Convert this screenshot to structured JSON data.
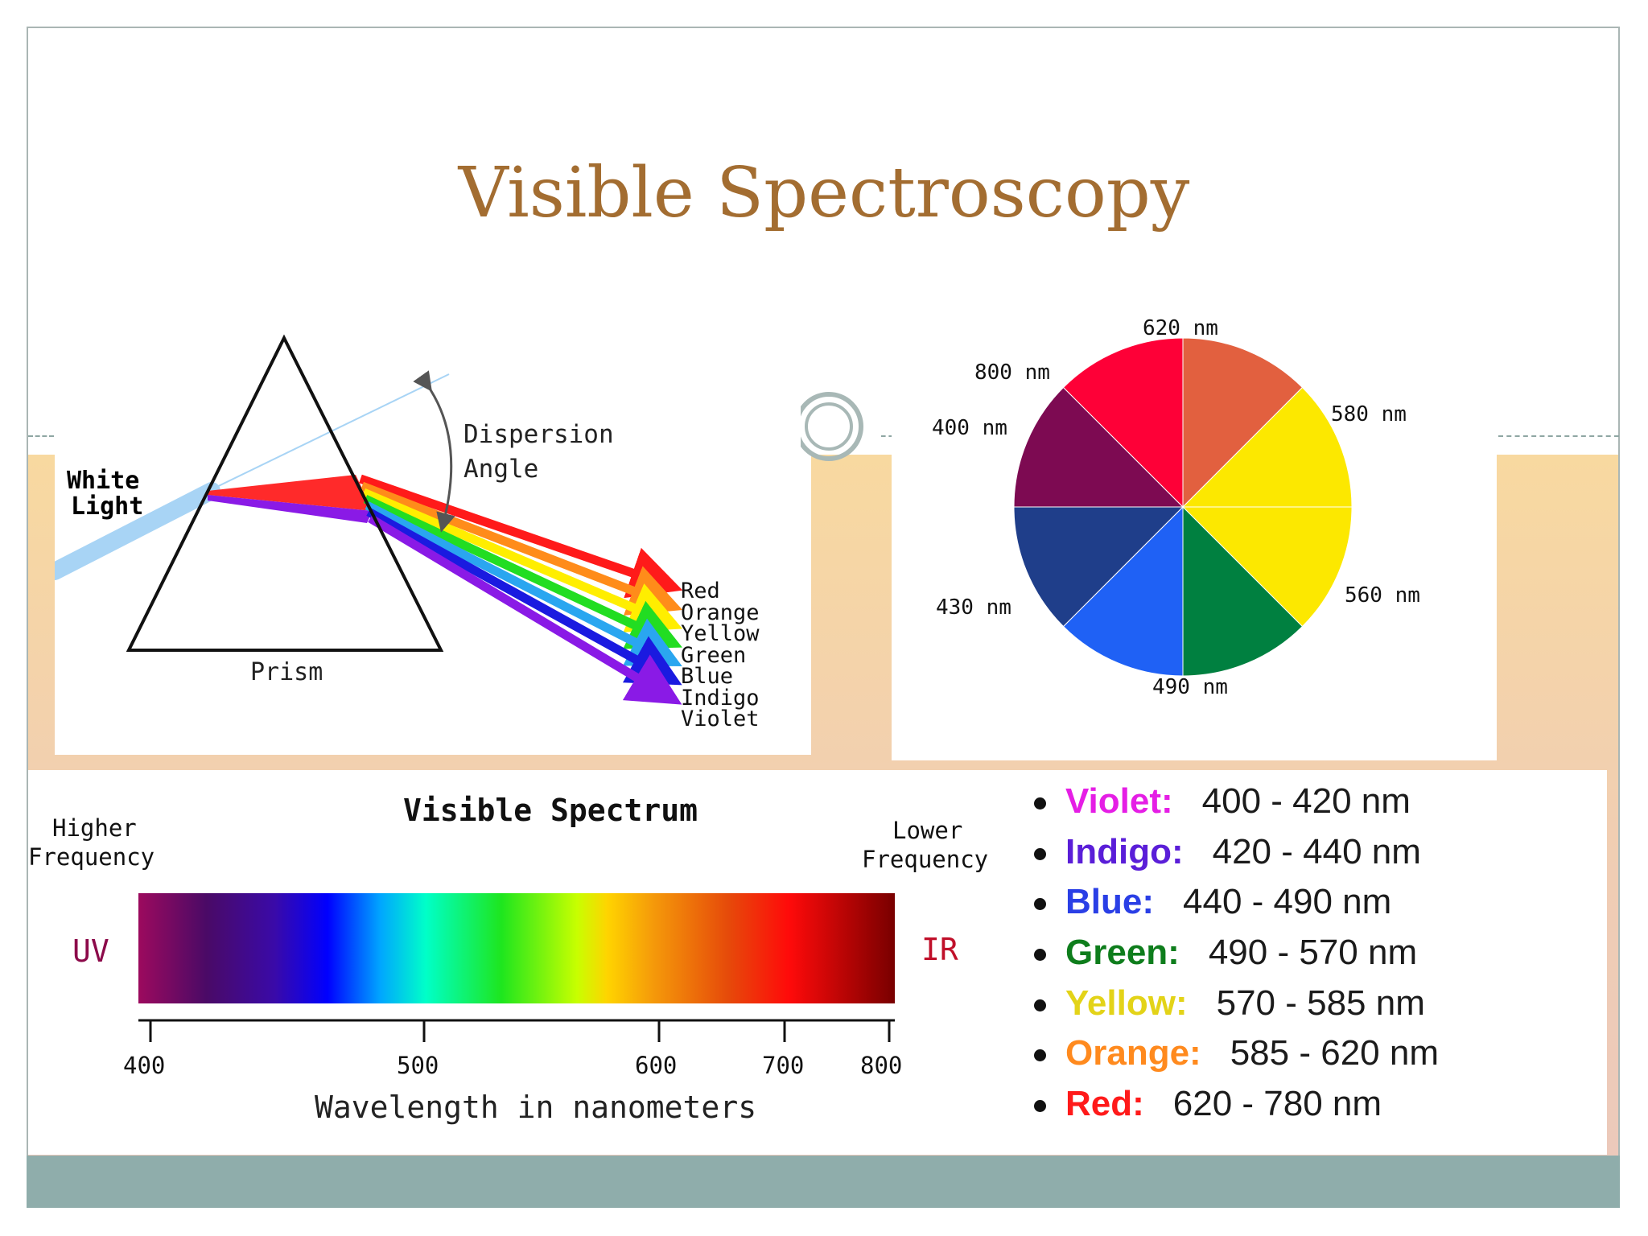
{
  "slide": {
    "title": "Visible  Spectroscopy"
  },
  "prism_diagram": {
    "white_light_line1": "White",
    "white_light_line2": "Light",
    "dispersion_line1": "Dispersion",
    "dispersion_line2": "Angle",
    "prism_label": "Prism",
    "rays": [
      "Red",
      "Orange",
      "Yellow",
      "Green",
      "Blue",
      "Indigo",
      "Violet"
    ]
  },
  "color_wheel": {
    "labels": [
      "620 nm",
      "800 nm",
      "580 nm",
      "400 nm",
      "560 nm",
      "430 nm",
      "490 nm"
    ],
    "colors": [
      "#e2603f",
      "#fce800",
      "#008040",
      "#1f61f5",
      "#1f3e8a",
      "#7d0a52",
      "#fe0037"
    ]
  },
  "visible_spectrum": {
    "title": "Visible Spectrum",
    "higher_line1": "Higher",
    "higher_line2": "Frequency",
    "lower_line1": "Lower",
    "lower_line2": "Frequency",
    "uv": "UV",
    "ir": "IR",
    "ticks": [
      "400",
      "500",
      "600",
      "700",
      "800"
    ],
    "xlabel": "Wavelength in nanometers"
  },
  "color_ranges": [
    {
      "name": "Violet:",
      "range": "400 - 420 nm"
    },
    {
      "name": "Indigo:",
      "range": "420 - 440 nm"
    },
    {
      "name": "Blue:",
      "range": "440 - 490 nm"
    },
    {
      "name": "Green:",
      "range": "490 - 570 nm"
    },
    {
      "name": "Yellow:",
      "range": "570 - 585 nm"
    },
    {
      "name": "Orange:",
      "range": "585 - 620 nm"
    },
    {
      "name": "Red:",
      "range": "620 - 780 nm"
    }
  ]
}
